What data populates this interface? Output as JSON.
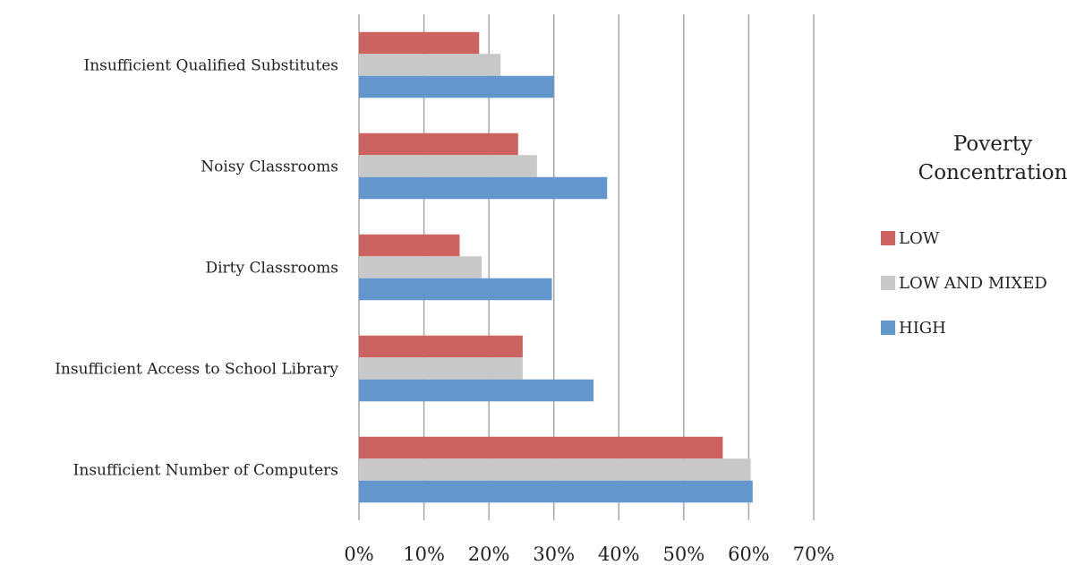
{
  "chart_data": {
    "type": "bar",
    "orientation": "horizontal",
    "categories": [
      "Insufficient Qualified Substitutes",
      "Noisy Classrooms",
      "Dirty Classrooms",
      "Insufficient Access to School Library",
      "Insufficient Number of Computers"
    ],
    "series": [
      {
        "name": "LOW",
        "color": "#CC6360",
        "values": [
          18.5,
          24.5,
          15.5,
          25.2,
          56
        ]
      },
      {
        "name": "LOW AND MIXED",
        "color": "#C8C8C8",
        "values": [
          21.8,
          27.4,
          18.9,
          25.2,
          60.3
        ]
      },
      {
        "name": "HIGH",
        "color": "#6396CC",
        "values": [
          30,
          38.2,
          29.7,
          36.1,
          60.6
        ]
      }
    ],
    "xlim": [
      0,
      70
    ],
    "x_ticks": [
      "0%",
      "10%",
      "20%",
      "30%",
      "40%",
      "50%",
      "60%",
      "70%"
    ],
    "x_tick_values": [
      0,
      10,
      20,
      30,
      40,
      50,
      60,
      70
    ],
    "grid": true,
    "legend": {
      "title_lines": [
        "Poverty",
        "Concentration"
      ],
      "placement": "right"
    }
  }
}
